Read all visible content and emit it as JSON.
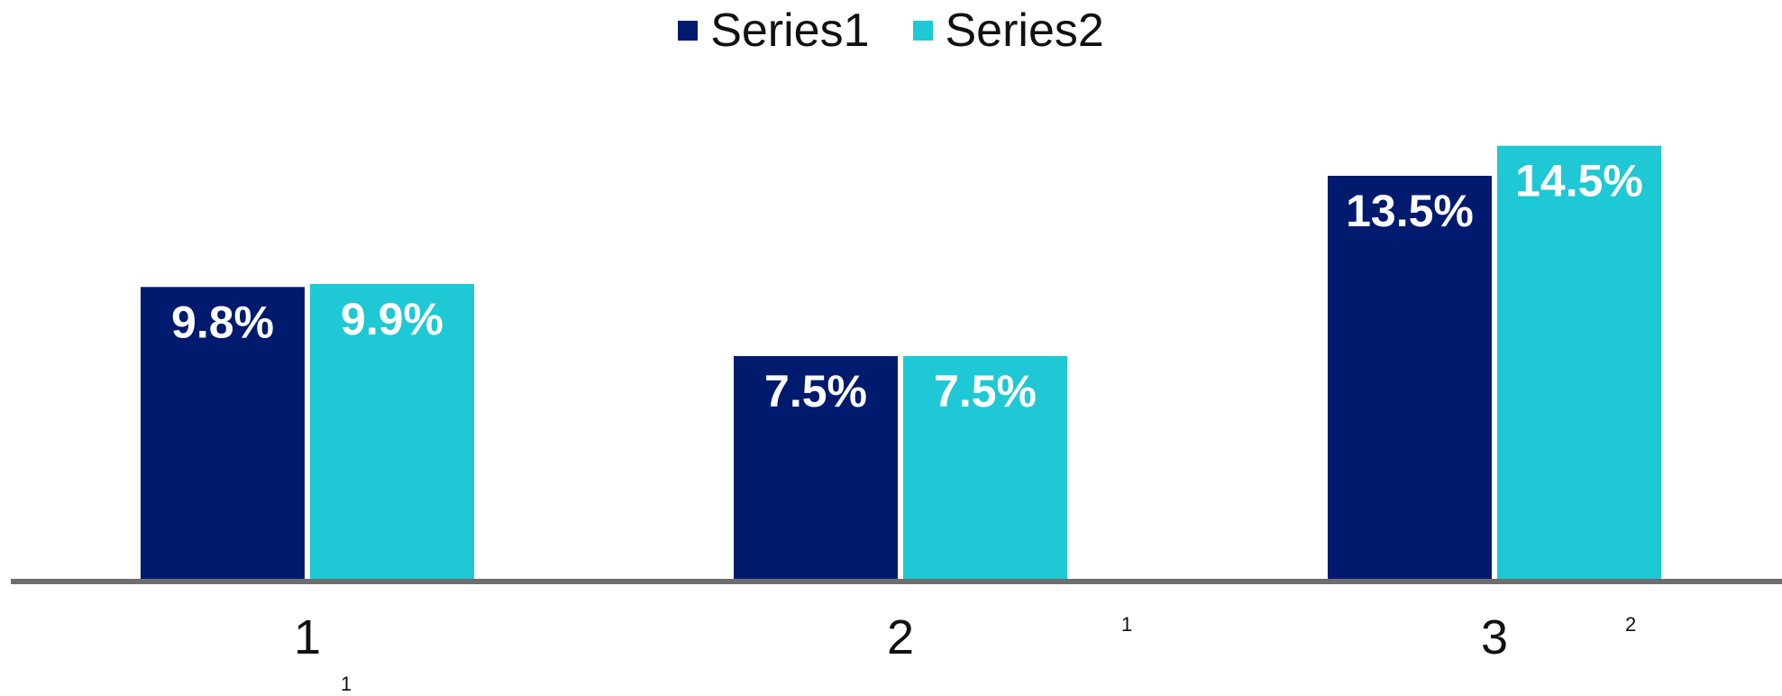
{
  "chart_data": {
    "type": "bar",
    "categories": [
      "1",
      "2",
      "3"
    ],
    "series": [
      {
        "name": "Series1",
        "values": [
          9.8,
          7.5,
          13.5
        ],
        "labels": [
          "9.8%",
          "7.5%",
          "13.5%"
        ],
        "color": "#001a6e"
      },
      {
        "name": "Series2",
        "values": [
          9.9,
          7.5,
          14.5
        ],
        "labels": [
          "9.9%",
          "7.5%",
          "14.5%"
        ],
        "color": "#1ec8d4"
      }
    ],
    "ylim": [
      0,
      15
    ],
    "grid": false,
    "legend": "top-center",
    "axis_color": "#6e6e6e",
    "footnotes": [
      "1",
      "1",
      "2"
    ]
  }
}
